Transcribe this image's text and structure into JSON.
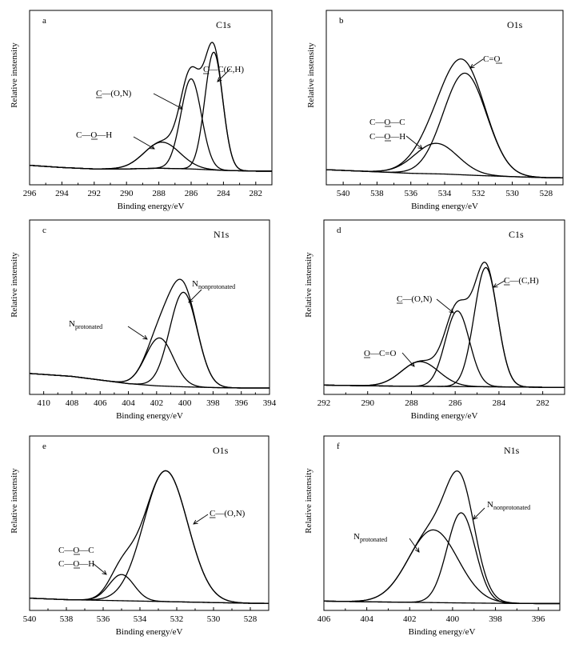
{
  "figure": {
    "panels": [
      {
        "id": "a",
        "title": "C1s",
        "ylabel": "Relative instensity",
        "xlabel": "Binding energy/eV"
      },
      {
        "id": "b",
        "title": "O1s",
        "ylabel": "Relative instensity",
        "xlabel": "Binding energy/eV"
      },
      {
        "id": "c",
        "title": "N1s",
        "ylabel": "Relative instensity",
        "xlabel": "Binding energy/eV"
      },
      {
        "id": "d",
        "title": "C1s",
        "ylabel": "Relative instensity",
        "xlabel": "Binding energy/eV"
      },
      {
        "id": "e",
        "title": "O1s",
        "ylabel": "Relative instensity",
        "xlabel": "Binding energy/eV"
      },
      {
        "id": "f",
        "title": "N1s",
        "ylabel": "Relative instensity",
        "xlabel": "Binding energy/eV"
      }
    ]
  },
  "chart_data": [
    {
      "id": "a",
      "type": "line",
      "title": "C1s",
      "xlabel": "Binding energy/eV",
      "ylabel": "Relative instensity",
      "xlim": [
        296,
        281
      ],
      "ylim": [
        0,
        100
      ],
      "x_reversed": true,
      "xticks": [
        296,
        294,
        292,
        290,
        288,
        286,
        284,
        282
      ],
      "baseline": {
        "x": [
          296,
          294,
          292,
          290,
          288,
          286,
          284,
          282,
          281
        ],
        "y": [
          9,
          7.5,
          6.5,
          6.5,
          7,
          6.5,
          5.5,
          5,
          5
        ]
      },
      "components": [
        {
          "name": "C—C(C,H)",
          "center": 284.6,
          "height": 81,
          "fwhm": 1.3
        },
        {
          "name": "C—(O,N)",
          "center": 286.0,
          "height": 62,
          "fwhm": 1.5
        },
        {
          "name": "C—O—H",
          "center": 287.8,
          "height": 18,
          "fwhm": 2.6
        }
      ],
      "envelope": "sum",
      "labels": [
        {
          "text": "C(C,H)",
          "prefix": "C—",
          "underline_prefix": true,
          "sub": "",
          "target_x": 284.5
        },
        {
          "text": "(O,N)",
          "prefix": "C—",
          "underline_prefix": true,
          "sub": "",
          "target_x": 285.9
        },
        {
          "text": "C—O—H",
          "prefix": "",
          "underline_prefix": false,
          "sub": "",
          "target_x": 287.8
        }
      ]
    },
    {
      "id": "b",
      "type": "line",
      "title": "O1s",
      "xlabel": "Binding energy/eV",
      "ylabel": "Relative instensity",
      "xlim": [
        541,
        527
      ],
      "ylim": [
        0,
        100
      ],
      "x_reversed": true,
      "xticks": [
        540,
        538,
        536,
        534,
        532,
        530,
        528
      ],
      "baseline": {
        "x": [
          541,
          538,
          536,
          534,
          532,
          530,
          528,
          527
        ],
        "y": [
          6,
          4.5,
          3.5,
          3,
          2,
          1.2,
          0.5,
          0.5
        ]
      },
      "components": [
        {
          "name": "C=O",
          "center": 532.8,
          "height": 70,
          "fwhm": 3.0
        },
        {
          "name": "C—O—C / C—O—H",
          "center": 534.5,
          "height": 21,
          "fwhm": 3.0
        }
      ],
      "envelope": "sum",
      "labels": [
        {
          "text": "C=O",
          "target_x": 532.6
        },
        {
          "text": "C—O—C",
          "target_x": 535.2
        },
        {
          "text": "C—O—H",
          "target_x": 535.2
        }
      ]
    },
    {
      "id": "c",
      "type": "line",
      "title": "N1s",
      "xlabel": "Binding energy/eV",
      "ylabel": "Relative instensity",
      "xlim": [
        411,
        394
      ],
      "ylim": [
        0,
        100
      ],
      "x_reversed": true,
      "xticks": [
        410,
        408,
        406,
        404,
        402,
        400,
        398,
        396,
        394
      ],
      "baseline": {
        "x": [
          411,
          408,
          406,
          404,
          402,
          400,
          398,
          396,
          394
        ],
        "y": [
          10,
          8,
          5.5,
          3,
          1.5,
          0.8,
          0.3,
          0,
          0
        ]
      },
      "components": [
        {
          "name": "N nonprotonated",
          "center": 400.1,
          "height": 65,
          "fwhm": 2.3
        },
        {
          "name": "N protonated",
          "center": 401.8,
          "height": 33,
          "fwhm": 2.3
        }
      ],
      "envelope": "sum",
      "labels": [
        {
          "text": "N",
          "sub": "nonprotonated",
          "target_x": 399.6
        },
        {
          "text": "N",
          "sub": "protonated",
          "target_x": 401.8
        }
      ]
    },
    {
      "id": "d",
      "type": "line",
      "title": "C1s",
      "xlabel": "Binding energy/eV",
      "ylabel": "Relative instensity",
      "xlim": [
        292,
        281
      ],
      "ylim": [
        0,
        100
      ],
      "x_reversed": true,
      "xticks": [
        292,
        290,
        288,
        286,
        284,
        282
      ],
      "baseline": {
        "x": [
          292,
          290,
          288,
          286,
          284,
          282,
          281
        ],
        "y": [
          2,
          1.5,
          1.2,
          1,
          0.8,
          0.5,
          0.5
        ]
      },
      "components": [
        {
          "name": "C—(C,H)",
          "center": 284.6,
          "height": 82,
          "fwhm": 1.25
        },
        {
          "name": "C—(O,N)",
          "center": 285.9,
          "height": 52,
          "fwhm": 1.3
        },
        {
          "name": "O—C=O",
          "center": 287.6,
          "height": 17,
          "fwhm": 2.0
        }
      ],
      "envelope": "sum",
      "labels": [
        {
          "text": "C—(C,H)",
          "target_x": 284.4
        },
        {
          "text": "C—(O,N)",
          "target_x": 285.9
        },
        {
          "text": "O—C=O",
          "target_x": 287.6
        }
      ]
    },
    {
      "id": "e",
      "type": "line",
      "title": "O1s",
      "xlabel": "Binding energy/eV",
      "ylabel": "Relative instensity",
      "xlim": [
        540,
        527
      ],
      "ylim": [
        0,
        100
      ],
      "x_reversed": true,
      "xticks": [
        540,
        538,
        536,
        534,
        532,
        530,
        528
      ],
      "baseline": {
        "x": [
          540,
          538,
          536,
          534,
          532,
          530,
          528,
          527
        ],
        "y": [
          4,
          3,
          2.5,
          2,
          1.5,
          1,
          0.5,
          0.5
        ]
      },
      "components": [
        {
          "name": "C—(O,N)",
          "center": 532.6,
          "height": 90,
          "fwhm": 2.8
        },
        {
          "name": "C—O—C / C—O—H",
          "center": 535.0,
          "height": 18,
          "fwhm": 1.6
        }
      ],
      "envelope": "sum",
      "labels": [
        {
          "text": "C—(O,N)",
          "target_x": 531.7
        },
        {
          "text": "C—O—C",
          "target_x": 535.2
        },
        {
          "text": "C—O—H",
          "target_x": 535.2
        }
      ]
    },
    {
      "id": "f",
      "type": "line",
      "title": "N1s",
      "xlabel": "Binding energy/eV",
      "ylabel": "Relative instensity",
      "xlim": [
        406,
        395
      ],
      "ylim": [
        0,
        100
      ],
      "x_reversed": true,
      "xticks": [
        406,
        404,
        402,
        400,
        398,
        396
      ],
      "baseline": {
        "x": [
          406,
          404,
          402,
          400,
          398,
          396,
          395
        ],
        "y": [
          2,
          1.5,
          1.2,
          0.8,
          0.5,
          0.3,
          0.3
        ]
      },
      "components": [
        {
          "name": "N nonprotonated",
          "center": 399.6,
          "height": 62,
          "fwhm": 1.55
        },
        {
          "name": "N protonated",
          "center": 400.9,
          "height": 50,
          "fwhm": 2.7
        }
      ],
      "envelope": "sum",
      "labels": [
        {
          "text": "N",
          "sub": "nonprotonated",
          "target_x": 399.3
        },
        {
          "text": "N",
          "sub": "protonated",
          "target_x": 401.3
        }
      ]
    }
  ]
}
